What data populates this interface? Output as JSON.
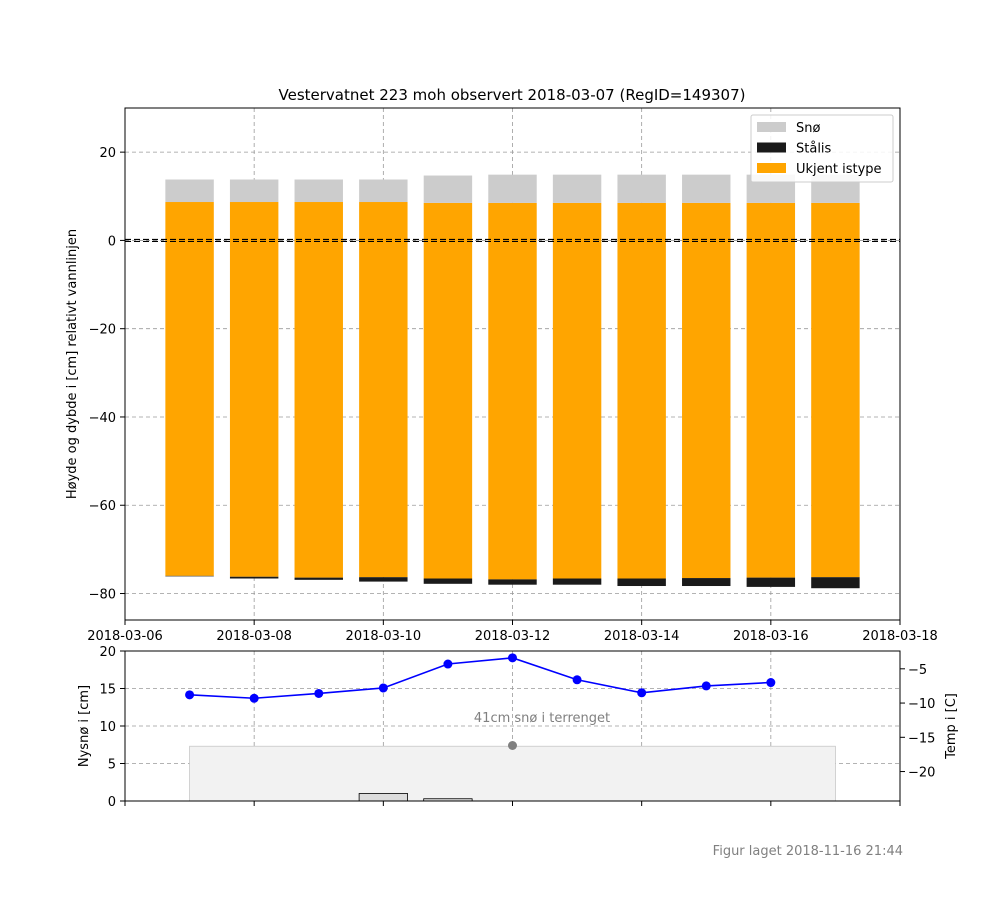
{
  "footer": "Figur laget 2018-11-16 21:44",
  "chart_data": [
    {
      "type": "bar",
      "stacked": true,
      "title": "Vestervatnet 223 moh observert 2018-03-07 (RegID=149307)",
      "ylabel": "Høyde og dybde i [cm] relativt vannlinjen",
      "xlim": [
        "2018-03-06",
        "2018-03-18"
      ],
      "ylim": [
        -86,
        30
      ],
      "x_ticks": [
        "2018-03-06",
        "2018-03-08",
        "2018-03-10",
        "2018-03-12",
        "2018-03-14",
        "2018-03-16",
        "2018-03-18"
      ],
      "y_ticks": [
        20,
        0,
        -20,
        -40,
        -60,
        -80
      ],
      "grid": true,
      "legend_position": "top-right",
      "waterline": 0,
      "dates": [
        "2018-03-07",
        "2018-03-08",
        "2018-03-09",
        "2018-03-10",
        "2018-03-11",
        "2018-03-12",
        "2018-03-13",
        "2018-03-14",
        "2018-03-15",
        "2018-03-16",
        "2018-03-17"
      ],
      "layers": [
        {
          "name": "Ukjent istype",
          "color": "#ffa500",
          "bottom": [
            -76.0,
            -76.2,
            -76.4,
            -76.3,
            -76.6,
            -76.8,
            -76.6,
            -76.6,
            -76.5,
            -76.4,
            -76.3
          ],
          "top": [
            8.7,
            8.7,
            8.7,
            8.7,
            8.5,
            8.5,
            8.5,
            8.5,
            8.5,
            8.5,
            8.5
          ]
        },
        {
          "name": "Stålis",
          "color": "#1a1a1a",
          "bottom": [
            -76.0,
            -76.6,
            -76.9,
            -77.3,
            -77.8,
            -78.0,
            -78.0,
            -78.3,
            -78.3,
            -78.5,
            -78.8
          ],
          "top": [
            -76.0,
            -76.2,
            -76.4,
            -76.3,
            -76.6,
            -76.8,
            -76.6,
            -76.6,
            -76.5,
            -76.4,
            -76.3
          ]
        },
        {
          "name": "Snø",
          "color": "#cccccc",
          "bottom": [
            8.7,
            8.7,
            8.7,
            8.7,
            8.5,
            8.5,
            8.5,
            8.5,
            8.5,
            8.5,
            8.5
          ],
          "top": [
            13.8,
            13.8,
            13.8,
            13.8,
            14.7,
            14.9,
            14.9,
            14.9,
            14.9,
            14.9,
            14.9
          ]
        }
      ],
      "legend": [
        "Snø",
        "Stålis",
        "Ukjent istype"
      ]
    },
    {
      "type": "line",
      "ylabel": "Nysnø i [cm]",
      "y2label": "Temp i [C]",
      "ylim": [
        0,
        20
      ],
      "y2lim": [
        -24.3,
        -2.4
      ],
      "y_ticks": [
        0,
        5,
        10,
        15,
        20
      ],
      "y2_ticks": [
        -5,
        -10,
        -15,
        -20
      ],
      "grid": true,
      "temperature": {
        "color": "#0000ff",
        "x": [
          "2018-03-07",
          "2018-03-08",
          "2018-03-09",
          "2018-03-10",
          "2018-03-11",
          "2018-03-12",
          "2018-03-13",
          "2018-03-14",
          "2018-03-15",
          "2018-03-16"
        ],
        "values": [
          -8.8,
          -9.3,
          -8.6,
          -7.8,
          -4.3,
          -3.4,
          -6.6,
          -8.5,
          -7.5,
          -7.0
        ]
      },
      "terrain_snow": {
        "fill": "#f2f2f2",
        "x_start": "2018-03-07",
        "x_end": "2018-03-17",
        "value": 7.3
      },
      "new_snow_bars": [
        {
          "date": "2018-03-10",
          "value": 1.0
        },
        {
          "date": "2018-03-11",
          "value": 0.3
        }
      ],
      "annotation": {
        "text": "41cm snø i terrenget",
        "date": "2018-03-12",
        "value": 7.4,
        "color": "#808080"
      }
    }
  ]
}
